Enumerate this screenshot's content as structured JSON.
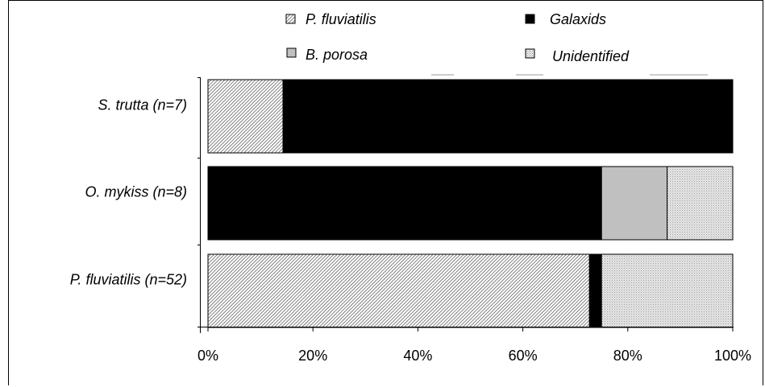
{
  "chart_data": {
    "type": "bar",
    "orientation": "horizontal",
    "stacked": "percent",
    "title": "",
    "xlabel": "",
    "ylabel": "",
    "categories": [
      "S. trutta (n=7)",
      "O. mykiss (n=8)",
      "P. fluviatilis (n=52)"
    ],
    "series": [
      {
        "name": "P. fluviatilis",
        "values": [
          14.3,
          0,
          72.7
        ],
        "fill": "diagonal-hatch"
      },
      {
        "name": "Galaxids",
        "values": [
          85.7,
          75.0,
          2.3
        ],
        "fill": "solid-black"
      },
      {
        "name": "B. porosa",
        "values": [
          0,
          12.5,
          0
        ],
        "fill": "grey"
      },
      {
        "name": "Unidentified",
        "values": [
          0,
          12.5,
          25.0
        ],
        "fill": "fine-dots"
      }
    ],
    "xlim": [
      0,
      100
    ],
    "x_ticks": [
      "0%",
      "20%",
      "40%",
      "60%",
      "80%",
      "100%"
    ],
    "grid": false,
    "legend_position": "top"
  },
  "colors": {
    "galaxids": "#000000",
    "b_porosa": "#c0c0c0",
    "unidentified": "#e6e6e6",
    "hatch_line": "#4d4d4d"
  }
}
